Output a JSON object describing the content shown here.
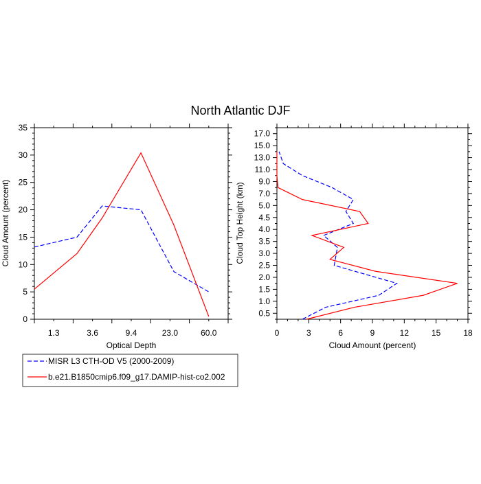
{
  "figure": {
    "title": "North Atlantic DJF"
  },
  "legend": {
    "items": [
      {
        "label": "MISR L3 CTH-OD V5 (2000-2009)",
        "color": "#0000ff",
        "dashed": true
      },
      {
        "label": "b.e21.B1850cmip6.f09_g17.DAMIP-hist-co2.002",
        "color": "#ff0000",
        "dashed": false
      }
    ]
  },
  "chart_data": [
    {
      "type": "line",
      "xlabel": "Optical Depth",
      "ylabel": "Cloud Amount (percent)",
      "ylim": [
        0,
        35
      ],
      "y_ticks": [
        0,
        5,
        10,
        15,
        20,
        25,
        30,
        35
      ],
      "y_tick_labels": [
        "0",
        "5",
        "10",
        "15",
        "20",
        "25",
        "30",
        "35"
      ],
      "x_index": [
        0,
        1,
        2,
        3,
        4,
        5,
        6
      ],
      "x_tick_labels": [
        "1.3",
        "3.6",
        "9.4",
        "23.0",
        "60.0"
      ],
      "x_tick_index": [
        0.5,
        1.5,
        2.5,
        3.5,
        4.5
      ],
      "series": [
        {
          "name": "MISR L3 CTH-OD V5 (2000-2009)",
          "color": "#0000ff",
          "dashed": true,
          "values": [
            13.2,
            15.0,
            20.7,
            20.0,
            8.7,
            5.0
          ]
        },
        {
          "name": "b.e21.B1850cmip6.f09_g17.DAMIP-hist-co2.002",
          "color": "#ff0000",
          "dashed": false,
          "values": [
            5.5,
            12.0,
            18.5,
            30.4,
            17.2,
            0.5
          ]
        }
      ],
      "series_x": [
        0,
        1.1,
        1.75,
        2.75,
        3.6,
        4.5
      ]
    },
    {
      "type": "line",
      "xlabel": "Cloud Amount (percent)",
      "ylabel": "Cloud Top Height (km)",
      "xlim": [
        0,
        18
      ],
      "x_ticks": [
        0,
        3,
        6,
        9,
        12,
        15,
        18
      ],
      "x_tick_labels": [
        "0",
        "3",
        "6",
        "9",
        "12",
        "15",
        "18"
      ],
      "ylim": [
        0,
        18
      ],
      "y_ticks": [
        0.5,
        1.0,
        1.5,
        2.0,
        2.5,
        3.0,
        3.5,
        4.0,
        4.5,
        5.0,
        7.0,
        9.0,
        11.0,
        13.0,
        15.0,
        17.0
      ],
      "y_tick_labels": [
        "0.5",
        "1.0",
        "1.5",
        "2.0",
        "2.5",
        "3.0",
        "3.5",
        "4.0",
        "4.5",
        "5.0",
        "7.0",
        "9.0",
        "11.0",
        "13.0",
        "15.0",
        "17.0"
      ],
      "y_tick_index": [
        0.5,
        1.5,
        2.5,
        3.5,
        4.5,
        5.5,
        6.5,
        7.5,
        8.5,
        9.5,
        10.5,
        11.5,
        12.5,
        13.5,
        14.5,
        15.5
      ],
      "series": [
        {
          "name": "MISR L3 CTH-OD V5 (2000-2009)",
          "color": "#0000ff",
          "dashed": true,
          "points": [
            [
              2.4,
              0
            ],
            [
              4.6,
              1.0
            ],
            [
              9.6,
              2.0
            ],
            [
              11.3,
              3.0
            ],
            [
              5.4,
              4.5
            ],
            [
              5.7,
              6.0
            ],
            [
              4.4,
              7.0
            ],
            [
              7.2,
              8.0
            ],
            [
              6.5,
              9.0
            ],
            [
              7.2,
              10.0
            ],
            [
              5.2,
              11.0
            ],
            [
              2.4,
              12.0
            ],
            [
              0.6,
              13.0
            ],
            [
              0.2,
              14.0
            ]
          ]
        },
        {
          "name": "b.e21.B1850cmip6.f09_g17.DAMIP-hist-co2.002",
          "color": "#ff0000",
          "dashed": false,
          "points": [
            [
              2.8,
              0
            ],
            [
              7.3,
              1.0
            ],
            [
              13.8,
              2.0
            ],
            [
              17.0,
              3.0
            ],
            [
              9.3,
              4.0
            ],
            [
              5.0,
              5.0
            ],
            [
              6.3,
              6.0
            ],
            [
              3.3,
              7.0
            ],
            [
              8.6,
              8.0
            ],
            [
              7.8,
              9.0
            ],
            [
              2.4,
              10.0
            ],
            [
              0.1,
              11.0
            ],
            [
              0.0,
              12.0
            ],
            [
              0.0,
              14.0
            ]
          ]
        }
      ]
    }
  ]
}
